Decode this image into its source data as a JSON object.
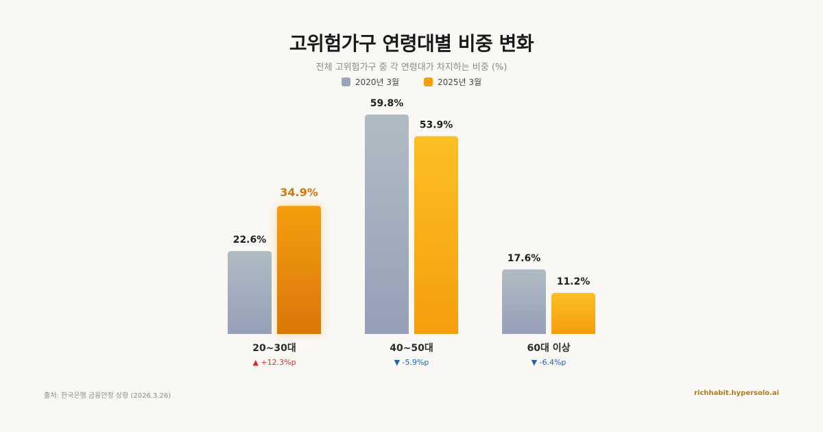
{
  "chart_data": {
    "type": "bar",
    "title": "고위험가구 연령대별 비중 변화",
    "subtitle": "전체 고위험가구 중 각 연령대가 차지하는 비중 (%)",
    "categories": [
      "20~30대",
      "40~50대",
      "60대 이상"
    ],
    "series": [
      {
        "name": "2020년 3월",
        "values": [
          22.6,
          59.8,
          17.6
        ],
        "color": "#9aa5b8"
      },
      {
        "name": "2025년 3월",
        "values": [
          34.9,
          53.9,
          11.2
        ],
        "color": "#f59e0b"
      }
    ],
    "value_labels": {
      "2020": [
        "22.6%",
        "59.8%",
        "17.6%"
      ],
      "2025": [
        "34.9%",
        "53.9%",
        "11.2%"
      ]
    },
    "changes": [
      {
        "text": "▲ +12.3%p",
        "direction": "up",
        "color": "#d32f2f"
      },
      {
        "text": "▼ -5.9%p",
        "direction": "down",
        "color": "#1565c0"
      },
      {
        "text": "▼ -6.4%p",
        "direction": "down",
        "color": "#1565c0"
      }
    ],
    "highlight_color": "#d97706",
    "ylim": [
      0,
      60
    ],
    "grid": false,
    "legend": "top-center",
    "source": "출처: 한국은행 금융안정 상황 (2026.3.26)",
    "site": "richhabit.hypersolo.ai"
  }
}
